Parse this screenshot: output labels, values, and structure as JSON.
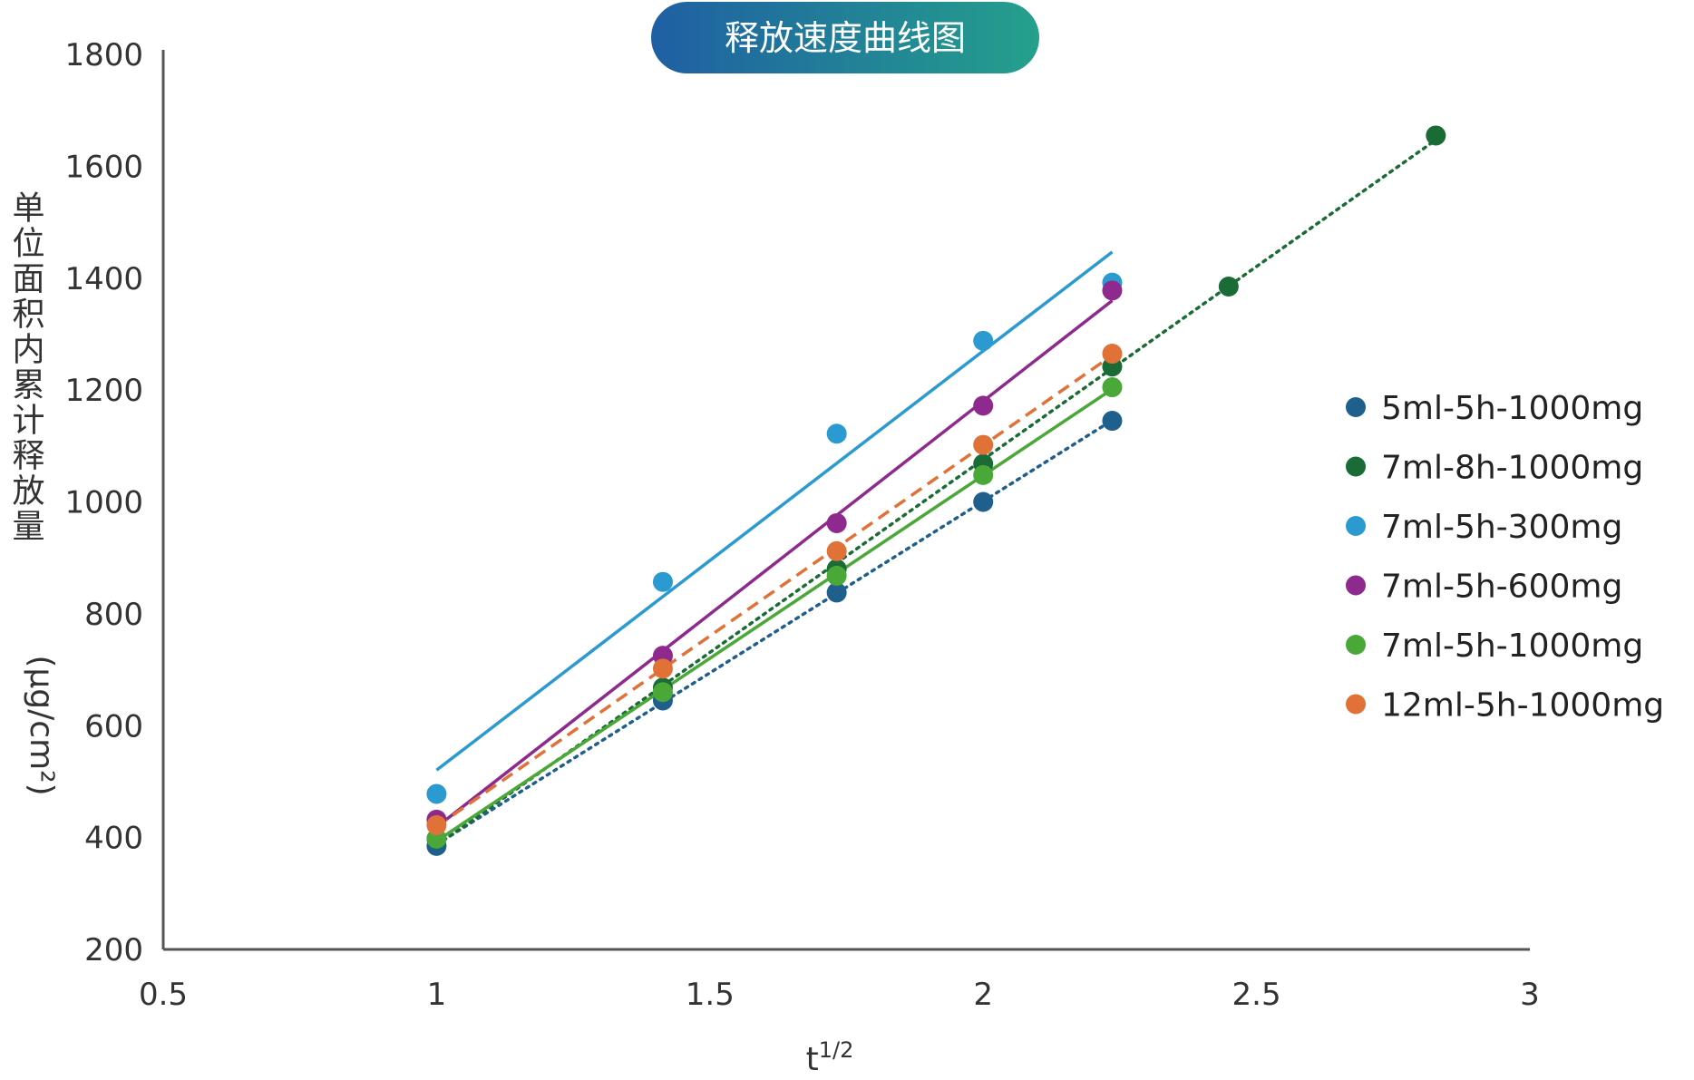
{
  "chart_data": {
    "type": "scatter",
    "title": "释放速度曲线图",
    "xlabel": "t",
    "xlabel_sup": "1/2",
    "ylabel": "单位面积内累计释放量",
    "ylabel_unit": "(μg/cm²)",
    "xlim": [
      0.5,
      3
    ],
    "ylim": [
      200,
      1800
    ],
    "x_ticks": [
      "0.5",
      "1",
      "1.5",
      "2",
      "2.5",
      "3"
    ],
    "y_ticks": [
      "200",
      "400",
      "600",
      "800",
      "1000",
      "1200",
      "1400",
      "1600",
      "1800"
    ],
    "grid": false,
    "legend_position": "right",
    "series": [
      {
        "name": "5ml-5h-1000mg",
        "color": "#1f5f8b",
        "line_style": "dotted",
        "x": [
          1,
          1.414,
          1.732,
          2,
          2.236
        ],
        "y": [
          385,
          645,
          838,
          1000,
          1145
        ]
      },
      {
        "name": "7ml-8h-1000mg",
        "color": "#1a6b35",
        "line_style": "dotted",
        "x": [
          1,
          1.414,
          1.732,
          2,
          2.236,
          2.449,
          2.828
        ],
        "y": [
          398,
          668,
          880,
          1068,
          1242,
          1385,
          1655
        ]
      },
      {
        "name": "7ml-5h-300mg",
        "color": "#2b9ad0",
        "line_style": "solid",
        "x": [
          1,
          1.414,
          1.732,
          2,
          2.236
        ],
        "y": [
          478,
          857,
          1122,
          1288,
          1392
        ]
      },
      {
        "name": "7ml-5h-600mg",
        "color": "#8e2a8e",
        "line_style": "solid",
        "x": [
          1,
          1.414,
          1.732,
          2,
          2.236
        ],
        "y": [
          432,
          725,
          962,
          1172,
          1378
        ]
      },
      {
        "name": "7ml-5h-1000mg",
        "color": "#4aa838",
        "line_style": "solid",
        "x": [
          1,
          1.414,
          1.732,
          2,
          2.236
        ],
        "y": [
          398,
          660,
          868,
          1048,
          1205
        ]
      },
      {
        "name": "12ml-5h-1000mg",
        "color": "#e07238",
        "line_style": "dashed",
        "x": [
          1,
          1.414,
          1.732,
          2,
          2.236
        ],
        "y": [
          422,
          702,
          912,
          1102,
          1265
        ]
      }
    ]
  }
}
